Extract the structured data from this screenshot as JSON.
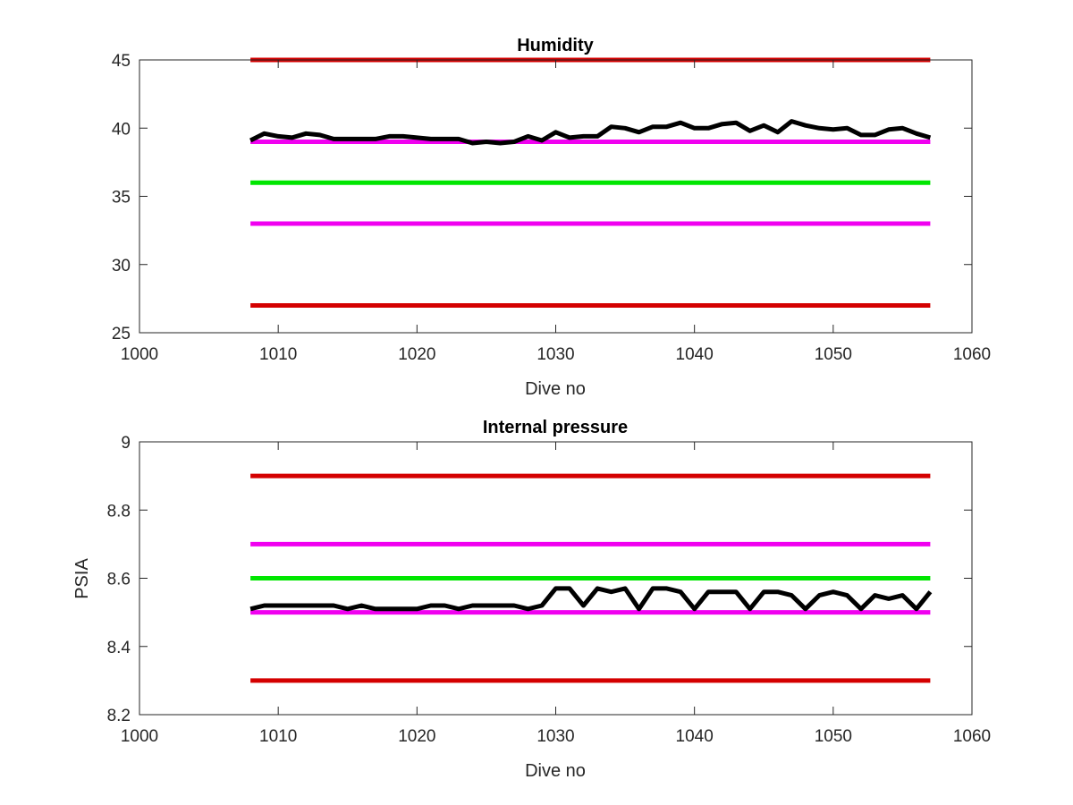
{
  "chart_data": [
    {
      "type": "line",
      "title": "Humidity",
      "xlabel": "Dive no",
      "ylabel": "",
      "xlim": [
        1000,
        1060
      ],
      "ylim": [
        25,
        45
      ],
      "xticks": [
        "1000",
        "1010",
        "1020",
        "1030",
        "1040",
        "1050",
        "1060"
      ],
      "yticks": [
        "25",
        "30",
        "35",
        "40",
        "45"
      ],
      "grid": false,
      "series": [
        {
          "color": "#d40000",
          "x": [
            1008,
            1057
          ],
          "values": [
            45,
            45
          ]
        },
        {
          "color": "#f000f0",
          "x": [
            1008,
            1057
          ],
          "values": [
            39,
            39
          ]
        },
        {
          "color": "#00e600",
          "x": [
            1008,
            1057
          ],
          "values": [
            36,
            36
          ]
        },
        {
          "color": "#f000f0",
          "x": [
            1008,
            1057
          ],
          "values": [
            33,
            33
          ]
        },
        {
          "color": "#d40000",
          "x": [
            1008,
            1057
          ],
          "values": [
            27,
            27
          ]
        },
        {
          "color": "#000000",
          "x": [
            1008,
            1009,
            1010,
            1011,
            1012,
            1013,
            1014,
            1015,
            1016,
            1017,
            1018,
            1019,
            1020,
            1021,
            1022,
            1023,
            1024,
            1025,
            1026,
            1027,
            1028,
            1029,
            1030,
            1031,
            1032,
            1033,
            1034,
            1035,
            1036,
            1037,
            1038,
            1039,
            1040,
            1041,
            1042,
            1043,
            1044,
            1045,
            1046,
            1047,
            1048,
            1049,
            1050,
            1051,
            1052,
            1053,
            1054,
            1055,
            1056,
            1057
          ],
          "values": [
            39.1,
            39.6,
            39.4,
            39.3,
            39.6,
            39.5,
            39.2,
            39.2,
            39.2,
            39.2,
            39.4,
            39.4,
            39.3,
            39.2,
            39.2,
            39.2,
            38.9,
            39.0,
            38.9,
            39.0,
            39.4,
            39.1,
            39.7,
            39.3,
            39.4,
            39.4,
            40.1,
            40.0,
            39.7,
            40.1,
            40.1,
            40.4,
            40.0,
            40.0,
            40.3,
            40.4,
            39.8,
            40.2,
            39.7,
            40.5,
            40.2,
            40.0,
            39.9,
            40.0,
            39.5,
            39.5,
            39.9,
            40.0,
            39.6,
            39.3
          ]
        }
      ]
    },
    {
      "type": "line",
      "title": "Internal pressure",
      "xlabel": "Dive no",
      "ylabel": "PSIA",
      "xlim": [
        1000,
        1060
      ],
      "ylim": [
        8.2,
        9.0
      ],
      "xticks": [
        "1000",
        "1010",
        "1020",
        "1030",
        "1040",
        "1050",
        "1060"
      ],
      "yticks": [
        "8.2",
        "8.4",
        "8.6",
        "8.8",
        "9"
      ],
      "grid": false,
      "series": [
        {
          "color": "#d40000",
          "x": [
            1008,
            1057
          ],
          "values": [
            8.9,
            8.9
          ]
        },
        {
          "color": "#f000f0",
          "x": [
            1008,
            1057
          ],
          "values": [
            8.7,
            8.7
          ]
        },
        {
          "color": "#00e600",
          "x": [
            1008,
            1057
          ],
          "values": [
            8.6,
            8.6
          ]
        },
        {
          "color": "#f000f0",
          "x": [
            1008,
            1057
          ],
          "values": [
            8.5,
            8.5
          ]
        },
        {
          "color": "#d40000",
          "x": [
            1008,
            1057
          ],
          "values": [
            8.3,
            8.3
          ]
        },
        {
          "color": "#000000",
          "x": [
            1008,
            1009,
            1010,
            1011,
            1012,
            1013,
            1014,
            1015,
            1016,
            1017,
            1018,
            1019,
            1020,
            1021,
            1022,
            1023,
            1024,
            1025,
            1026,
            1027,
            1028,
            1029,
            1030,
            1031,
            1032,
            1033,
            1034,
            1035,
            1036,
            1037,
            1038,
            1039,
            1040,
            1041,
            1042,
            1043,
            1044,
            1045,
            1046,
            1047,
            1048,
            1049,
            1050,
            1051,
            1052,
            1053,
            1054,
            1055,
            1056,
            1057
          ],
          "values": [
            8.51,
            8.52,
            8.52,
            8.52,
            8.52,
            8.52,
            8.52,
            8.51,
            8.52,
            8.51,
            8.51,
            8.51,
            8.51,
            8.52,
            8.52,
            8.51,
            8.52,
            8.52,
            8.52,
            8.52,
            8.51,
            8.52,
            8.57,
            8.57,
            8.52,
            8.57,
            8.56,
            8.57,
            8.51,
            8.57,
            8.57,
            8.56,
            8.51,
            8.56,
            8.56,
            8.56,
            8.51,
            8.56,
            8.56,
            8.55,
            8.51,
            8.55,
            8.56,
            8.55,
            8.51,
            8.55,
            8.54,
            8.55,
            8.51,
            8.56
          ]
        }
      ]
    }
  ]
}
